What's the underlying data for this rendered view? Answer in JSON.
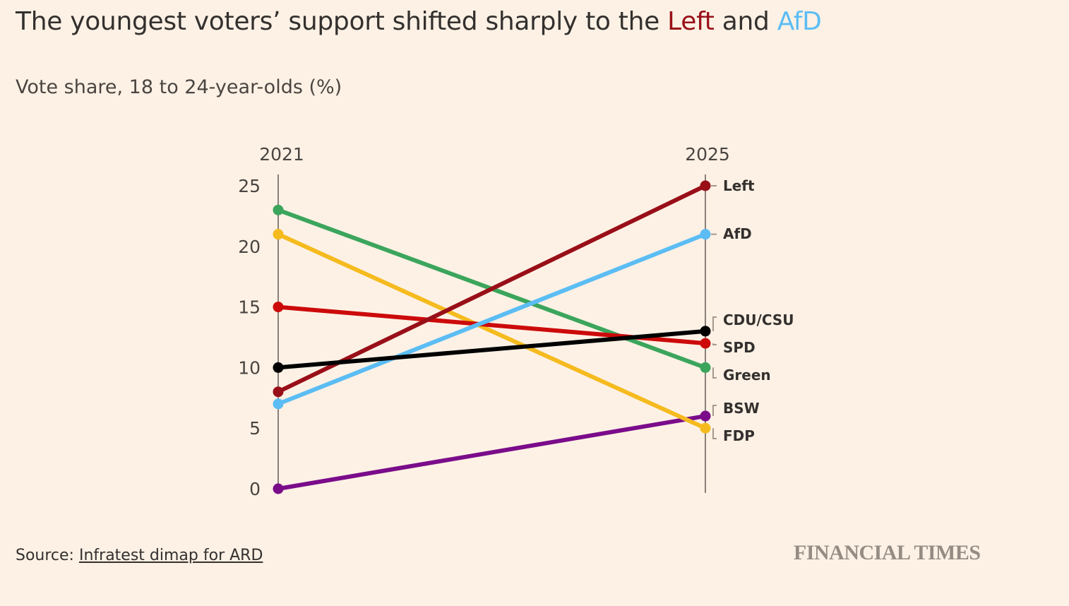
{
  "header": {
    "title_prefix": "The youngest voters’ support shifted sharply to the ",
    "title_left": "Left",
    "title_mid": " and ",
    "title_afd": "AfD",
    "subtitle": "Vote share, 18 to 24-year-olds (%)"
  },
  "footer": {
    "source_label": "Source: ",
    "source_link": "Infratest dimap for ARD",
    "brand": "FINANCIAL TIMES"
  },
  "chart_data": {
    "type": "line",
    "title": "The youngest voters’ support shifted sharply to the Left and AfD",
    "subtitle": "Vote share, 18 to 24-year-olds (%)",
    "xlabel": "",
    "ylabel": "Vote share (%)",
    "x": [
      "2021",
      "2025"
    ],
    "ylim": [
      0,
      25
    ],
    "yticks": [
      0,
      5,
      10,
      15,
      20,
      25
    ],
    "grid": false,
    "legend": "direct labels at right",
    "series": [
      {
        "name": "Left",
        "values": [
          8,
          25
        ],
        "color": "#990f18",
        "label_offset": 0
      },
      {
        "name": "AfD",
        "values": [
          7,
          21
        ],
        "color": "#5bbdf4",
        "label_offset": 0
      },
      {
        "name": "CDU/CSU",
        "values": [
          10,
          13
        ],
        "color": "#000000",
        "label_offset": -1,
        "bracket": "top"
      },
      {
        "name": "SPD",
        "values": [
          15,
          12
        ],
        "color": "#cc0a0a",
        "label_offset": 0,
        "bracket": "mid"
      },
      {
        "name": "Green",
        "values": [
          23,
          10
        ],
        "color": "#3ba55c",
        "label_offset": -1,
        "bracket": "bottom"
      },
      {
        "name": "BSW",
        "values": [
          0,
          6
        ],
        "color": "#7a0c8a",
        "label_offset": -1,
        "bracket": "top"
      },
      {
        "name": "FDP",
        "values": [
          21,
          5
        ],
        "color": "#f5bb1e",
        "label_offset": -1,
        "bracket": "bottom"
      }
    ]
  }
}
